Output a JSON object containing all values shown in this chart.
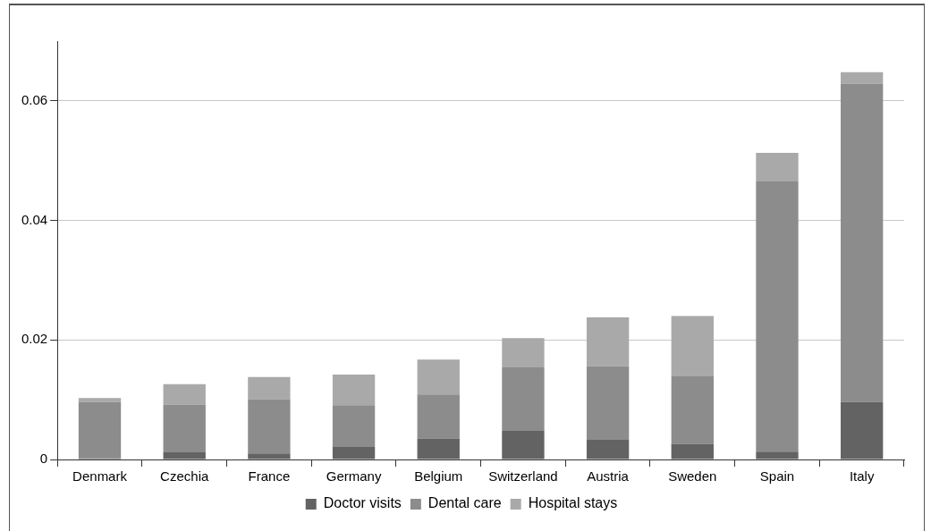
{
  "chart_data": {
    "type": "bar",
    "stacked": true,
    "categories": [
      "Denmark",
      "Czechia",
      "France",
      "Germany",
      "Belgium",
      "Switzerland",
      "Austria",
      "Sweden",
      "Spain",
      "Italy"
    ],
    "series": [
      {
        "name": "Doctor visits",
        "color": "#636363",
        "values": [
          0.0002,
          0.0012,
          0.001,
          0.0021,
          0.0035,
          0.0048,
          0.0033,
          0.0026,
          0.0013,
          0.0096
        ]
      },
      {
        "name": "Dental care",
        "color": "#8c8c8c",
        "values": [
          0.0094,
          0.008,
          0.0091,
          0.007,
          0.0074,
          0.0106,
          0.0123,
          0.0113,
          0.0452,
          0.0533
        ]
      },
      {
        "name": "Hospital stays",
        "color": "#a9a9a9",
        "values": [
          0.0007,
          0.0034,
          0.0037,
          0.0051,
          0.0058,
          0.0049,
          0.0082,
          0.0101,
          0.0048,
          0.0019
        ]
      }
    ],
    "ylim": [
      0,
      0.07
    ],
    "yticks": [
      0,
      0.02,
      0.04,
      0.06
    ],
    "grid": "y",
    "legend": "bottom"
  }
}
